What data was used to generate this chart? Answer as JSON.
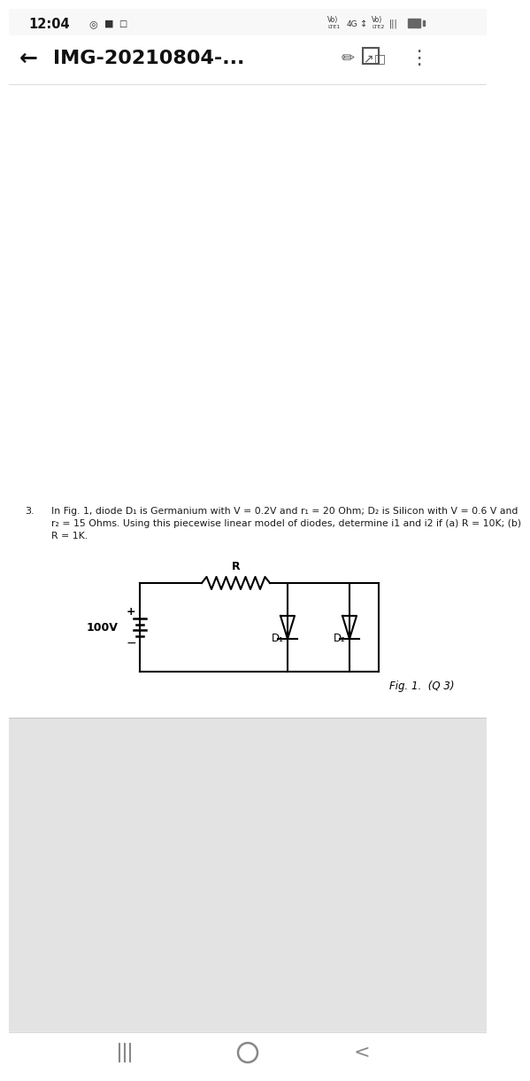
{
  "status_bar_text": "12:04",
  "title_bar_text": "IMG-20210804-...",
  "problem_number": "3.",
  "problem_text_line1": "In Fig. 1, diode D₁ is Germanium with V = 0.2V and r₁ = 20 Ohm; D₂ is Silicon with V = 0.6 V and",
  "problem_text_line2": "r₂ = 15 Ohms. Using this piecewise linear model of diodes, determine i1 and i2 if (a) R = 10K; (b)",
  "problem_text_line3": "R = 1K.",
  "fig_caption": "Fig. 1.  (Q 3)",
  "voltage_label": "100V",
  "resistor_label": "R",
  "diode1_label": "D₁",
  "diode2_label": "D₂",
  "content_bg": "#ffffff",
  "text_color": "#1a1a1a",
  "gray_bg": "#e3e3e3",
  "status_bg": "#f8f8f8",
  "nav_bg": "#ffffff",
  "divider_color": "#cccccc"
}
